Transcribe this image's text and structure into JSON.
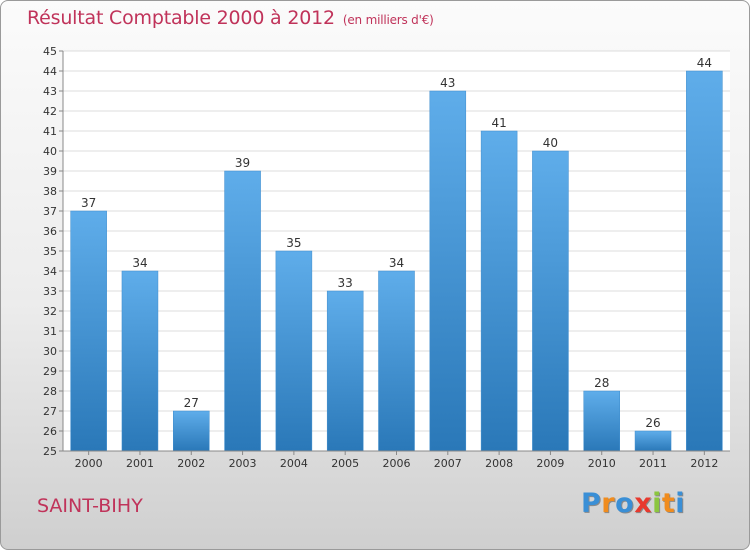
{
  "title": "Résultat Comptable 2000 à 2012",
  "subtitle": "(en milliers d'€)",
  "commune": "SAINT-BIHY",
  "logo": {
    "text": "Proxiti",
    "letters": [
      "P",
      "r",
      "o",
      "x",
      "i",
      "t",
      "i"
    ],
    "colors": [
      "#3a8fd6",
      "#f08c1e",
      "#3a8fd6",
      "#e8392e",
      "#8cc63f",
      "#f08c1e",
      "#3a8fd6"
    ]
  },
  "colors": {
    "bar_light": "#5fadea",
    "bar_dark": "#2a78b8",
    "title": "#c0335a"
  },
  "chart_data": {
    "type": "bar",
    "title": "Résultat Comptable 2000 à 2012",
    "ylabel": "en milliers d'€",
    "xlabel": "",
    "categories": [
      "2000",
      "2001",
      "2002",
      "2003",
      "2004",
      "2005",
      "2006",
      "2007",
      "2008",
      "2009",
      "2010",
      "2011",
      "2012"
    ],
    "values": [
      37,
      34,
      27,
      39,
      35,
      33,
      34,
      43,
      41,
      40,
      28,
      26,
      44
    ],
    "ylim": [
      25,
      45
    ],
    "yticks": [
      25,
      26,
      27,
      28,
      29,
      30,
      31,
      32,
      33,
      34,
      35,
      36,
      37,
      38,
      39,
      40,
      41,
      42,
      43,
      44,
      45
    ],
    "grid": true
  }
}
